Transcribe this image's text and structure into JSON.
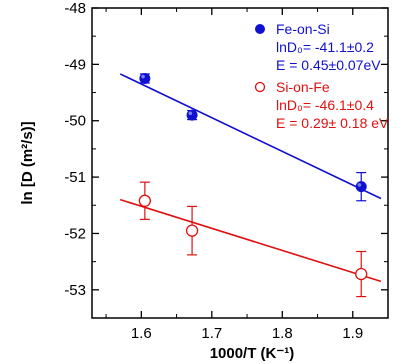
{
  "chart_data": {
    "type": "scatter",
    "xlabel": "1000/T  (K⁻¹)",
    "ylabel": "ln [D (m²/s)]",
    "xlim": [
      1.53,
      1.95
    ],
    "ylim": [
      -53.5,
      -48.0
    ],
    "xticks": [
      1.6,
      1.7,
      1.8,
      1.9
    ],
    "yticks": [
      -48,
      -49,
      -50,
      -51,
      -52,
      -53
    ],
    "xtick_labels": [
      "1.6",
      "1.7",
      "1.8",
      "1.9"
    ],
    "ytick_labels": [
      "-48",
      "-49",
      "-50",
      "-51",
      "-52",
      "-53"
    ],
    "grid": false,
    "legend_position": "top-right",
    "series": [
      {
        "name": "Fe-on-Si",
        "color": "#1010d0",
        "marker": "filled-circle",
        "x": [
          1.605,
          1.672,
          1.912
        ],
        "y": [
          -49.25,
          -49.9,
          -51.17
        ],
        "yerr": [
          0.08,
          0.08,
          0.25
        ],
        "fit": {
          "x": [
            1.57,
            1.94
          ],
          "y": [
            -49.17,
            -51.38
          ]
        },
        "annotations": [
          "lnD₀= -41.1±0.2",
          "E = 0.45±0.07eV"
        ]
      },
      {
        "name": "Si-on-Fe",
        "color": "#e01010",
        "marker": "open-circle",
        "x": [
          1.605,
          1.672,
          1.912
        ],
        "y": [
          -51.42,
          -51.95,
          -52.72
        ],
        "yerr": [
          0.33,
          0.43,
          0.4
        ],
        "fit": {
          "x": [
            1.57,
            1.94
          ],
          "y": [
            -51.4,
            -52.85
          ]
        },
        "annotations": [
          "lnD₀= -46.1±0.4",
          "E = 0.29± 0.18 eV"
        ]
      }
    ]
  }
}
